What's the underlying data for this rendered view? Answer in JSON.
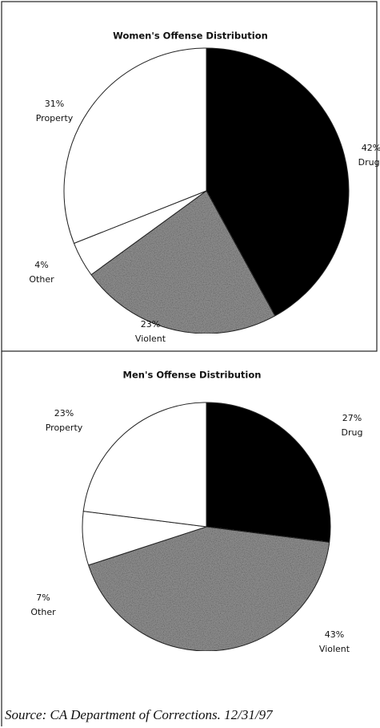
{
  "chart_data": [
    {
      "type": "pie",
      "title": "Women's Offense Distribution",
      "categories": [
        "Drugs",
        "Violent",
        "Other",
        "Property"
      ],
      "values": [
        42,
        23,
        4,
        31
      ],
      "value_labels": [
        "42%",
        "23%",
        "4%",
        "31%"
      ],
      "colors": [
        "#000000",
        "#8a8a8a",
        "#ffffff",
        "#ffffff"
      ]
    },
    {
      "type": "pie",
      "title": "Men's Offense Distribution",
      "categories": [
        "Drug",
        "Violent",
        "Other",
        "Property"
      ],
      "values": [
        27,
        43,
        7,
        23
      ],
      "value_labels": [
        "27%",
        "43%",
        "7%",
        "23%"
      ],
      "colors": [
        "#000000",
        "#8a8a8a",
        "#ffffff",
        "#ffffff"
      ]
    }
  ],
  "source": "Source:  CA Department of Corrections.  12/31/97"
}
